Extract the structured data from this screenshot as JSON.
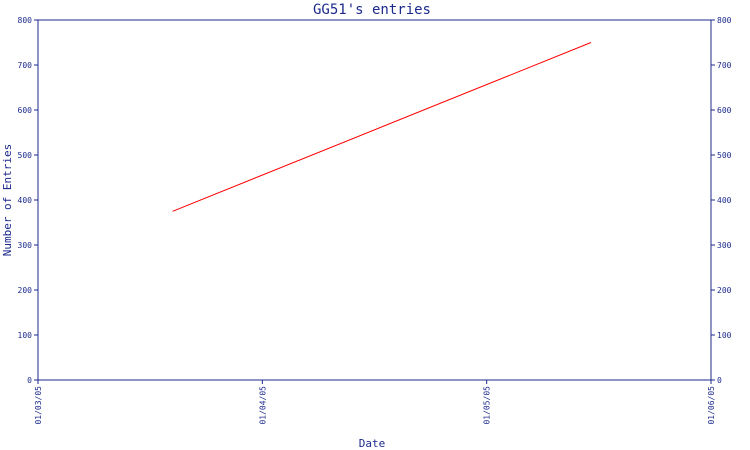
{
  "chart_data": {
    "type": "line",
    "title": "GG51's entries",
    "xlabel": "Date",
    "ylabel": "Number of Entries",
    "x_ticks": [
      "01/03/05",
      "01/04/05",
      "01/05/05",
      "01/06/05"
    ],
    "y_ticks": [
      "0",
      "100",
      "200",
      "300",
      "400",
      "500",
      "600",
      "700",
      "800"
    ],
    "ylim": [
      0,
      800
    ],
    "xlim": [
      "2005-01-03",
      "2005-01-06"
    ],
    "series": [
      {
        "color": "#ff0000",
        "points": [
          {
            "x": "2005-01-03 14:24",
            "y": 375
          },
          {
            "x": "2005-01-05 11:10",
            "y": 750
          }
        ]
      }
    ],
    "axis_color": "#1c2a8c",
    "grid": false,
    "right_axis_mirrors_left": true
  }
}
